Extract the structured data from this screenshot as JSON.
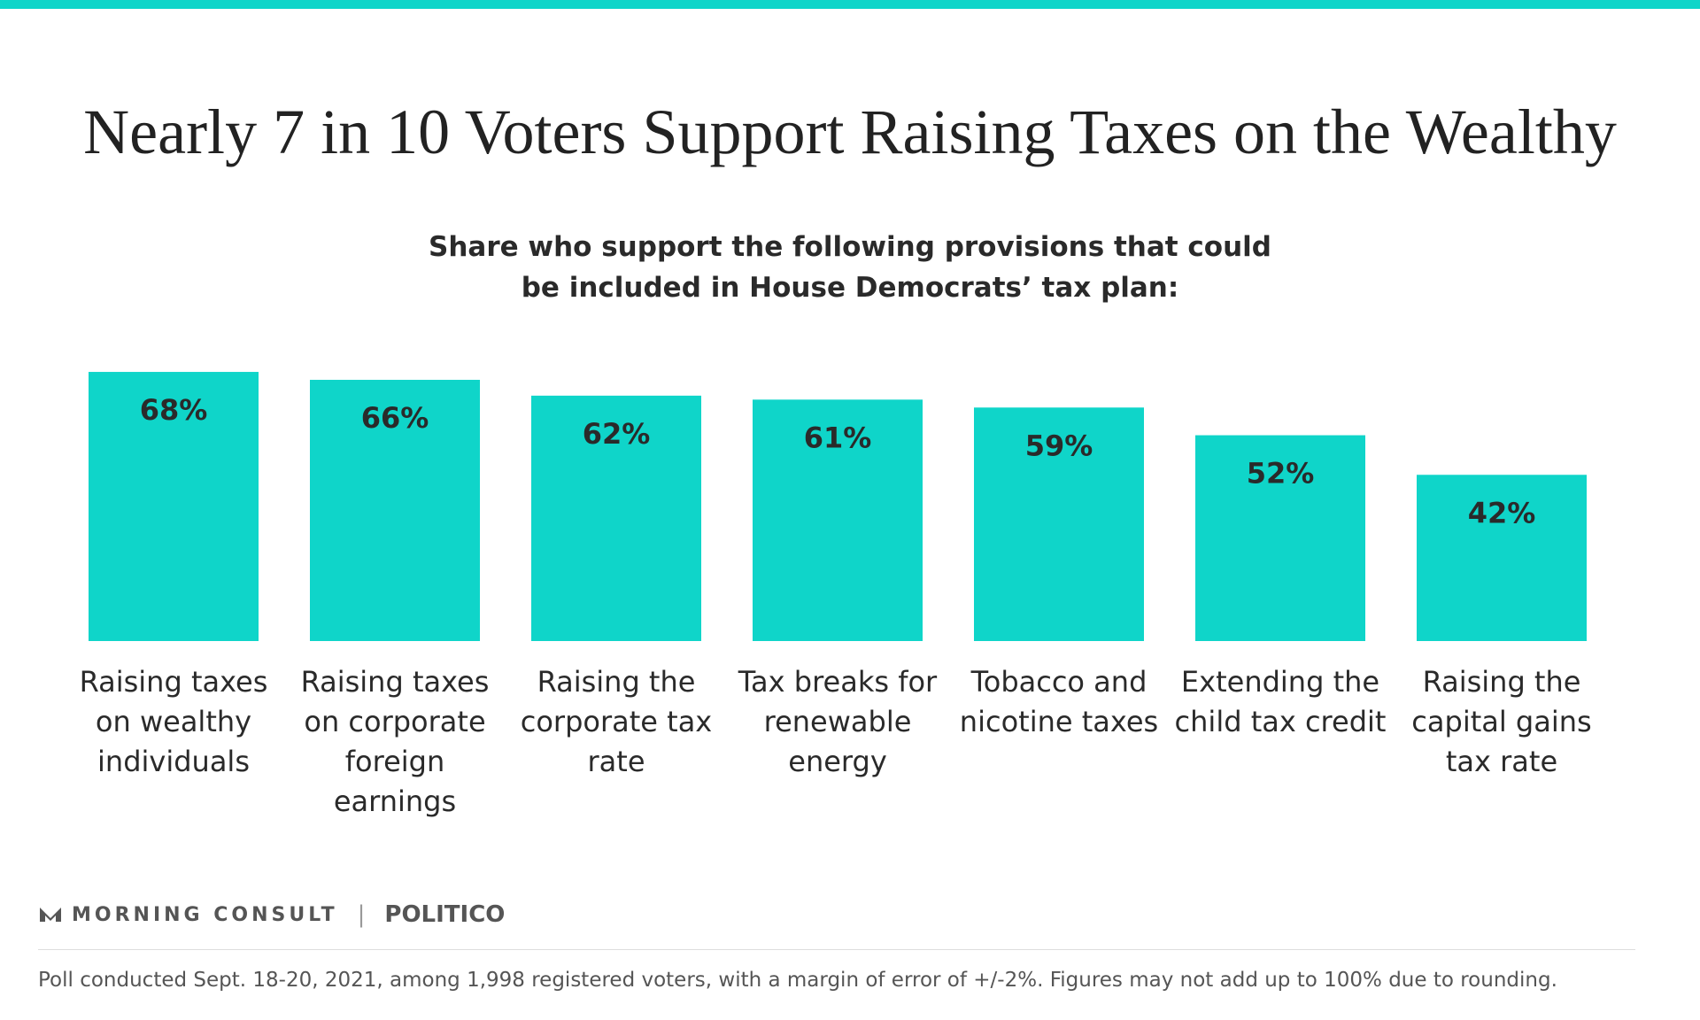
{
  "chart_data": {
    "type": "bar",
    "title": "Nearly 7 in 10 Voters Support Raising Taxes on the Wealthy",
    "subtitle": "Share who support the following provisions that could be included in House Democrats’ tax plan:",
    "categories": [
      "Raising taxes on wealthy individuals",
      "Raising taxes on corporate foreign earnings",
      "Raising the corporate tax rate",
      "Tax breaks for renewable energy",
      "Tobacco and nicotine taxes",
      "Extending the child tax credit",
      "Raising the capital gains tax rate"
    ],
    "values": [
      68,
      66,
      62,
      61,
      59,
      52,
      42
    ],
    "value_labels": [
      "68%",
      "66%",
      "62%",
      "61%",
      "59%",
      "52%",
      "42%"
    ],
    "color": "#0fd5c9",
    "source_brand": "MORNING CONSULT",
    "partner": "POLITICO",
    "note": "Poll conducted Sept. 18-20, 2021, among 1,998 registered voters, with a margin of error of +/-2%. Figures may not add up to 100% due to rounding."
  }
}
